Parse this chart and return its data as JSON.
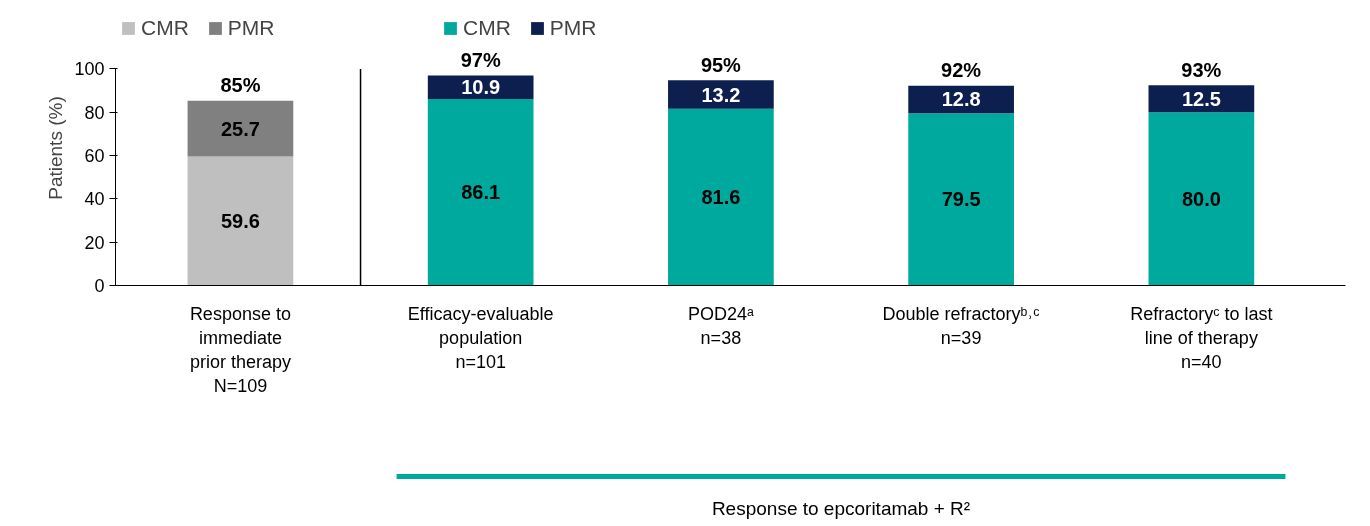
{
  "chart_data": {
    "type": "bar",
    "stacked": true,
    "ylabel": "Patients (%)",
    "ylim": [
      0,
      100
    ],
    "yticks": [
      0,
      20,
      40,
      60,
      80,
      100
    ],
    "grid": false,
    "legend": "top",
    "categories": [
      "Response to\nimmediate\nprior therapy\nN=109",
      "Efficacy-evaluable\npopulation\nn=101",
      "POD24ᵃ\nn=38",
      "Double refractoryᵇ˒ᶜ\nn=39",
      "Refractoryᶜ to last\nline of therapy\nn=40"
    ],
    "series": [
      {
        "name": "CMR",
        "color": "#bfbfbf",
        "values": [
          59.6,
          null,
          null,
          null,
          null
        ],
        "value_labels": [
          "59.6",
          null,
          null,
          null,
          null
        ]
      },
      {
        "name": "PMR",
        "color": "#808080",
        "values": [
          25.7,
          null,
          null,
          null,
          null
        ],
        "value_labels": [
          "25.7",
          null,
          null,
          null,
          null
        ]
      },
      {
        "name": "CMR",
        "color": "#00a99d",
        "values": [
          null,
          86.1,
          81.6,
          79.5,
          80.0
        ],
        "value_labels": [
          null,
          "86.1",
          "81.6",
          "79.5",
          "80.0"
        ]
      },
      {
        "name": "PMR",
        "color": "#0c1f4e",
        "values": [
          null,
          10.9,
          13.2,
          12.8,
          12.5
        ],
        "value_labels": [
          null,
          "10.9",
          "13.2",
          "12.8",
          "12.5"
        ]
      }
    ],
    "totals": [
      "85%",
      "97%",
      "95%",
      "92%",
      "93%"
    ],
    "annotations": [
      "Response to epcoritamab + R²"
    ]
  }
}
